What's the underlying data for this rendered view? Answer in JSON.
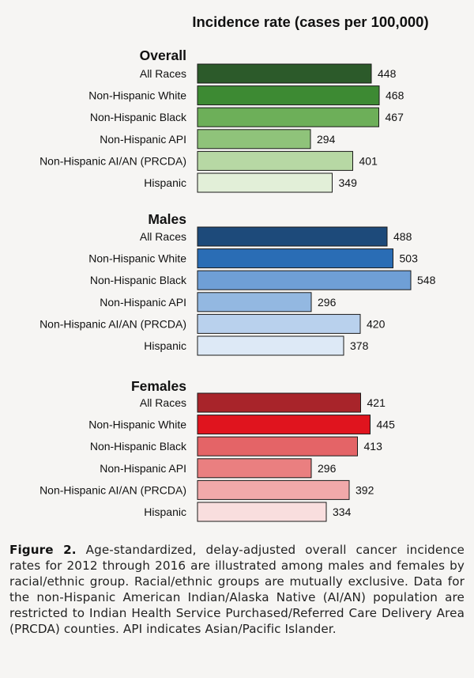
{
  "chart_data": {
    "type": "bar",
    "orientation": "horizontal",
    "title": "Incidence rate (cases per 100,000)",
    "xlabel": "Incidence rate (cases per 100,000)",
    "ylabel": "",
    "xlim": [
      0,
      560
    ],
    "grid": false,
    "panels": [
      {
        "name": "Overall",
        "categories": [
          "All Races",
          "Non-Hispanic White",
          "Non-Hispanic Black",
          "Non-Hispanic API",
          "Non-Hispanic AI/AN (PRCDA)",
          "Hispanic"
        ],
        "values": [
          448,
          468,
          467,
          294,
          401,
          349
        ],
        "colors": [
          "#2c5a2a",
          "#3d8a33",
          "#6daf59",
          "#8fc37a",
          "#b7d8a4",
          "#e2efd8"
        ]
      },
      {
        "name": "Males",
        "categories": [
          "All Races",
          "Non-Hispanic White",
          "Non-Hispanic Black",
          "Non-Hispanic API",
          "Non-Hispanic AI/AN (PRCDA)",
          "Hispanic"
        ],
        "values": [
          488,
          503,
          548,
          296,
          420,
          378
        ],
        "colors": [
          "#1d4a7a",
          "#2a6db5",
          "#6f9fd6",
          "#93b8e1",
          "#b9d1ed",
          "#dde9f6"
        ]
      },
      {
        "name": "Females",
        "categories": [
          "All Races",
          "Non-Hispanic White",
          "Non-Hispanic Black",
          "Non-Hispanic API",
          "Non-Hispanic AI/AN (PRCDA)",
          "Hispanic"
        ],
        "values": [
          421,
          445,
          413,
          296,
          392,
          334
        ],
        "colors": [
          "#a8242a",
          "#e0141e",
          "#e46467",
          "#ea7f80",
          "#f1a9aa",
          "#f9dede"
        ]
      }
    ]
  },
  "caption": {
    "label": "Figure 2.",
    "text": "Age-standardized, delay-adjusted overall cancer incidence rates for 2012 through 2016 are illustrated among males and females by racial/ethnic group. Racial/ethnic groups are mutually exclusive. Data for the non-Hispanic American Indian/Alaska Native (AI/AN) population are restricted to Indian Health Service Purchased/Referred Care Delivery Area (PRCDA) counties. API indicates Asian/Pacific Islander."
  }
}
